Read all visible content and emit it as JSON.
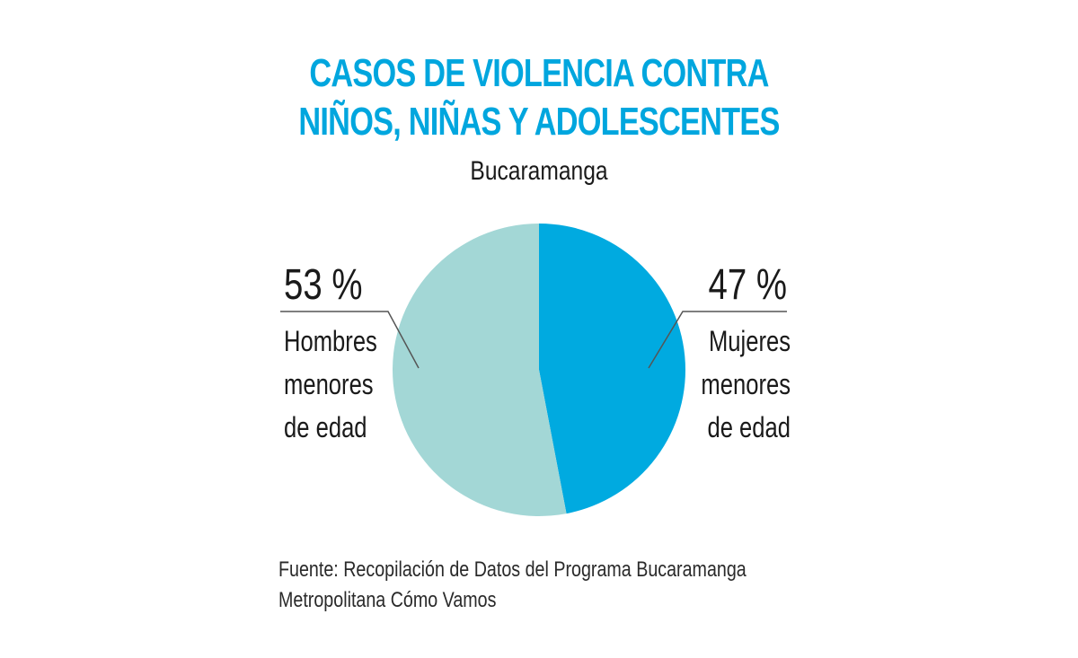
{
  "colors": {
    "title": "#00a6de",
    "text": "#1a1a1a",
    "leader": "#555555"
  },
  "chart_data": {
    "type": "pie",
    "title": [
      "CASOS DE VIOLENCIA CONTRA",
      "NIÑOS, NIÑAS Y ADOLESCENTES"
    ],
    "subtitle": "Bucaramanga",
    "start_angle_deg": 0,
    "direction": "clockwise",
    "slices": [
      {
        "label_lines": [
          "Mujeres",
          "menores",
          "de edad"
        ],
        "value": 47,
        "value_label": "47 %",
        "color": "#00aae0",
        "side": "right"
      },
      {
        "label_lines": [
          "Hombres",
          "menores",
          "de edad"
        ],
        "value": 53,
        "value_label": "53 %",
        "color": "#a3d7d6",
        "side": "left"
      }
    ],
    "source_lines": [
      "Fuente: Recopilación de Datos del Programa Bucaramanga",
      "Metropolitana Cómo Vamos"
    ]
  }
}
